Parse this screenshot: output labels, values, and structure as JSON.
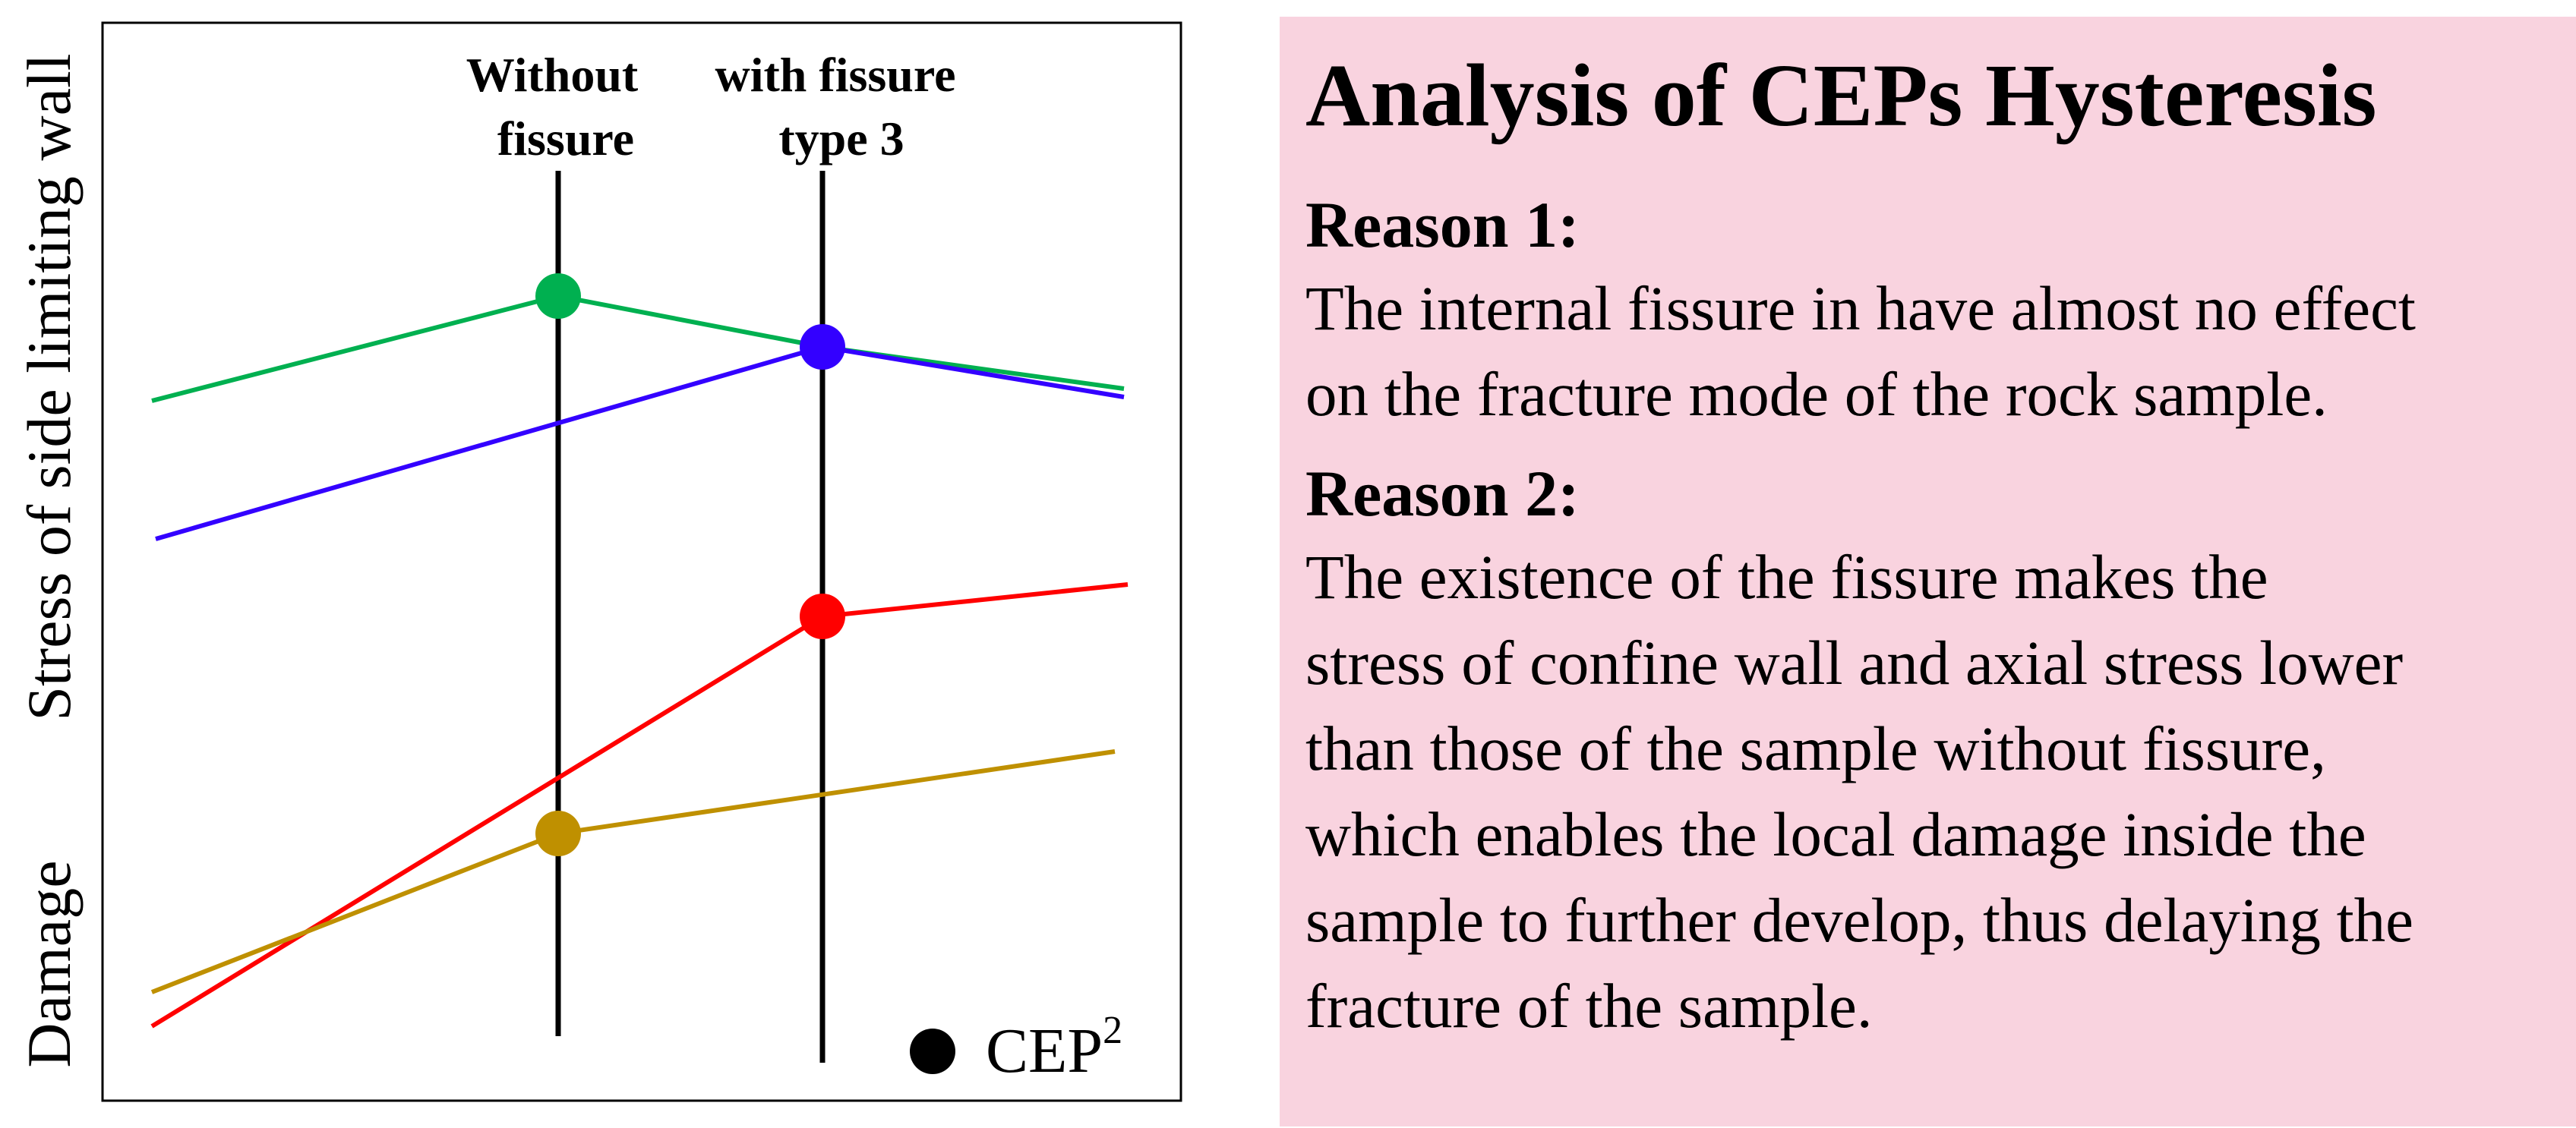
{
  "diagram": {
    "y_axis_label_top": "Stress of side limiting wall",
    "y_axis_label_bottom": "Damage",
    "columns": [
      {
        "line1": "Without",
        "line2": "fissure"
      },
      {
        "line1": "with fissure",
        "line2": "type 3"
      }
    ],
    "legend": {
      "label": "CEP",
      "superscript": "2"
    },
    "colors": {
      "green": "#00b050",
      "blue": "#3300ff",
      "red": "#ff0000",
      "gold": "#bf9000",
      "axis": "#000000"
    }
  },
  "panel": {
    "background": "#f9d3df",
    "title": "Analysis of CEPs Hysteresis",
    "reason1": {
      "heading": "Reason 1:",
      "lines": [
        "The internal fissure in have almost no effect",
        "on the fracture mode of the rock sample."
      ]
    },
    "reason2": {
      "heading": "Reason 2:",
      "lines": [
        "The existence of the fissure makes the",
        "stress of confine wall and axial stress lower",
        "than those of the sample without fissure,",
        "which enables the local damage inside the",
        "sample to further develop, thus delaying the",
        "fracture of the sample."
      ]
    }
  }
}
